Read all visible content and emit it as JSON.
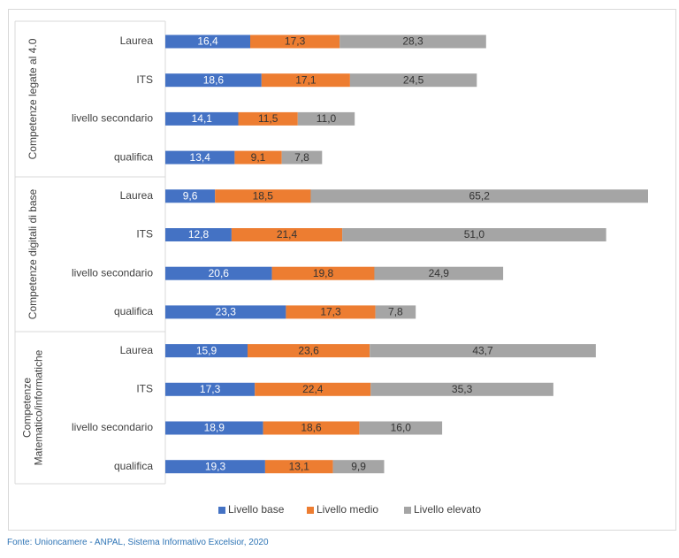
{
  "source_note": "Fonte: Unioncamere - ANPAL, Sistema Informativo Excelsior, 2020",
  "colors": {
    "base": "#4472c4",
    "medio": "#ed7d31",
    "elevato": "#a5a5a5",
    "grid": "#d9d9d9",
    "text": "#404040"
  },
  "chart_data": {
    "type": "bar",
    "orientation": "horizontal",
    "stacked": true,
    "title": "",
    "xlim": [
      0,
      95
    ],
    "grid": false,
    "legend": {
      "position": "bottom",
      "entries": [
        "Livello base",
        "Livello medio",
        "Livello elevato"
      ]
    },
    "series_names": [
      "Livello base",
      "Livello medio",
      "Livello elevato"
    ],
    "groups": [
      {
        "name": "Competenze legate al 4.0",
        "label_lines": [
          "Competenze legate al 4.0"
        ],
        "rows": [
          {
            "category": "Laurea",
            "values": [
              16.4,
              17.3,
              28.3
            ],
            "labels": [
              "16,4",
              "17,3",
              "28,3"
            ]
          },
          {
            "category": "ITS",
            "values": [
              18.6,
              17.1,
              24.5
            ],
            "labels": [
              "18,6",
              "17,1",
              "24,5"
            ]
          },
          {
            "category": "livello secondario",
            "values": [
              14.1,
              11.5,
              11.0
            ],
            "labels": [
              "14,1",
              "11,5",
              "11,0"
            ]
          },
          {
            "category": "qualifica",
            "values": [
              13.4,
              9.1,
              7.8
            ],
            "labels": [
              "13,4",
              "9,1",
              "7,8"
            ]
          }
        ]
      },
      {
        "name": "Competenze digitali di base",
        "label_lines": [
          "Competenze digitali di base"
        ],
        "rows": [
          {
            "category": "Laurea",
            "values": [
              9.6,
              18.5,
              65.2
            ],
            "labels": [
              "9,6",
              "18,5",
              "65,2"
            ]
          },
          {
            "category": "ITS",
            "values": [
              12.8,
              21.4,
              51.0
            ],
            "labels": [
              "12,8",
              "21,4",
              "51,0"
            ]
          },
          {
            "category": "livello secondario",
            "values": [
              20.6,
              19.8,
              24.9
            ],
            "labels": [
              "20,6",
              "19,8",
              "24,9"
            ]
          },
          {
            "category": "qualifica",
            "values": [
              23.3,
              17.3,
              7.8
            ],
            "labels": [
              "23,3",
              "17,3",
              "7,8"
            ]
          }
        ]
      },
      {
        "name": "Competenze Matematico/informatiche",
        "label_lines": [
          "Competenze",
          "Matematico/informatiche"
        ],
        "rows": [
          {
            "category": "Laurea",
            "values": [
              15.9,
              23.6,
              43.7
            ],
            "labels": [
              "15,9",
              "23,6",
              "43,7"
            ]
          },
          {
            "category": "ITS",
            "values": [
              17.3,
              22.4,
              35.3
            ],
            "labels": [
              "17,3",
              "22,4",
              "35,3"
            ]
          },
          {
            "category": "livello secondario",
            "values": [
              18.9,
              18.6,
              16.0
            ],
            "labels": [
              "18,9",
              "18,6",
              "16,0"
            ]
          },
          {
            "category": "qualifica",
            "values": [
              19.3,
              13.1,
              9.9
            ],
            "labels": [
              "19,3",
              "13,1",
              "9,9"
            ]
          }
        ]
      }
    ]
  }
}
